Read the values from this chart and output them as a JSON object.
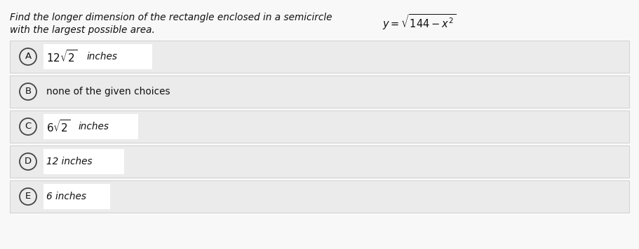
{
  "question_line1_pre": "Find the longer dimension of the rectangle enclosed in a semicircle ",
  "question_line1_math": "y=\\sqrt{144-x^2}",
  "question_line2": "with the largest possible area.",
  "options": [
    {
      "label": "A",
      "has_white_box": true,
      "math_text": "12\\sqrt{2}",
      "suffix": " inches"
    },
    {
      "label": "B",
      "has_white_box": false,
      "plain_text": "none of the given choices"
    },
    {
      "label": "C",
      "has_white_box": true,
      "math_text": "6\\sqrt{2}",
      "suffix": " inches"
    },
    {
      "label": "D",
      "has_white_box": true,
      "plain_text": "12 inches"
    },
    {
      "label": "E",
      "has_white_box": true,
      "plain_text": "6 inches"
    }
  ],
  "fig_bg": "#f8f8f8",
  "option_bg": "#ebebeb",
  "white_box_color": "#ffffff",
  "border_color": "#d0d0d0",
  "text_color": "#111111",
  "circle_edge_color": "#444444"
}
